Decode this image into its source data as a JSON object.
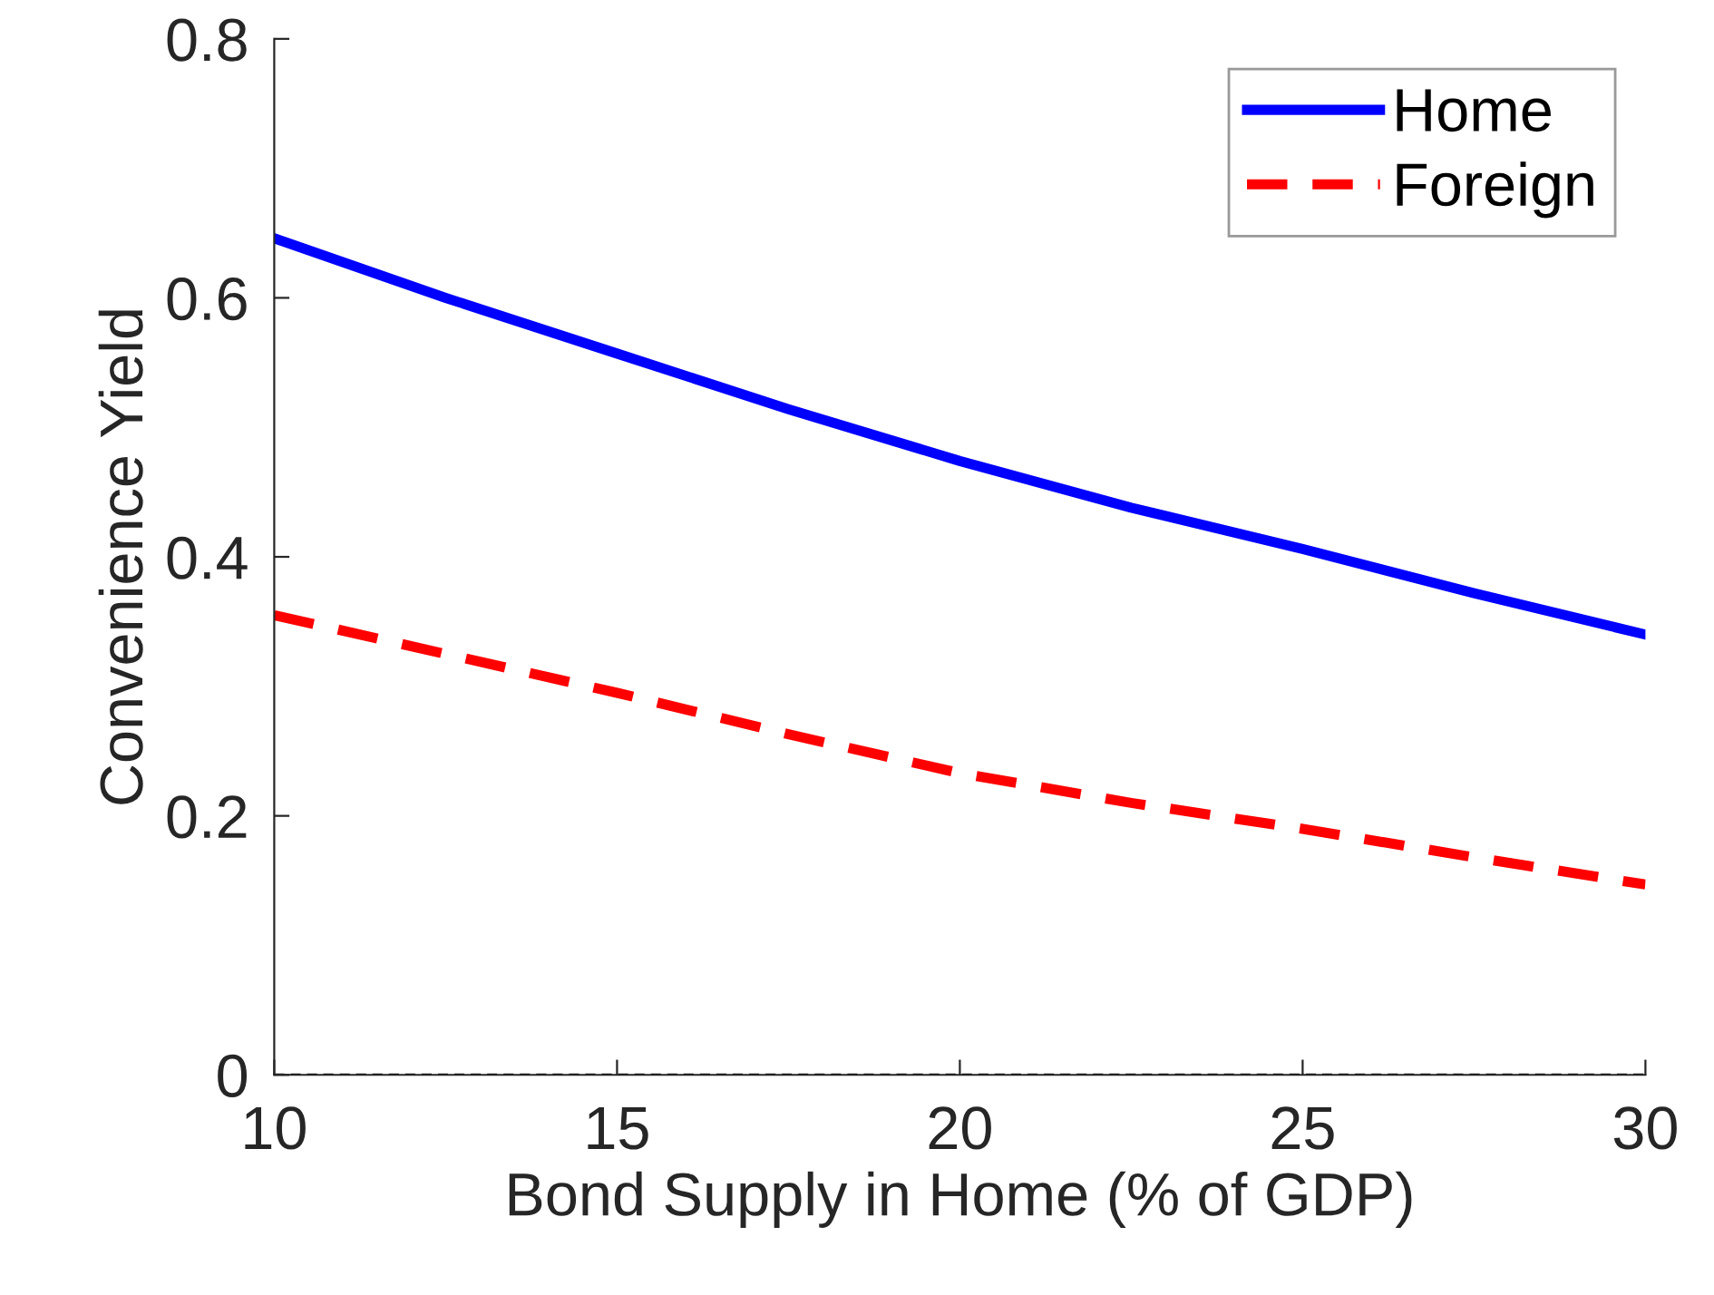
{
  "chart_data": {
    "type": "line",
    "xlabel": "Bond Supply in Home (% of GDP)",
    "ylabel": "Convenience Yield",
    "x": [
      10,
      12.5,
      15,
      17.5,
      20,
      22.5,
      25,
      27.5,
      30
    ],
    "series": [
      {
        "name": "Home",
        "color": "#0000ff",
        "line_style": "solid",
        "values": [
          0.646,
          0.6,
          0.557,
          0.514,
          0.474,
          0.438,
          0.406,
          0.372,
          0.34
        ]
      },
      {
        "name": "Foreign",
        "color": "#ff0000",
        "line_style": "dashed",
        "values": [
          0.355,
          0.325,
          0.295,
          0.263,
          0.233,
          0.21,
          0.19,
          0.168,
          0.147
        ]
      }
    ],
    "xlim": [
      10,
      30
    ],
    "xticks": [
      10,
      15,
      20,
      25,
      30
    ],
    "ylim": [
      0,
      0.8
    ],
    "yticks": [
      0,
      0.2,
      0.4,
      0.6,
      0.8
    ],
    "ref_lines": [
      {
        "axis": "y",
        "value": 0,
        "color": "#000000",
        "line_style": "dashed"
      }
    ],
    "grid": false,
    "legend": "top right",
    "marker": "none"
  }
}
